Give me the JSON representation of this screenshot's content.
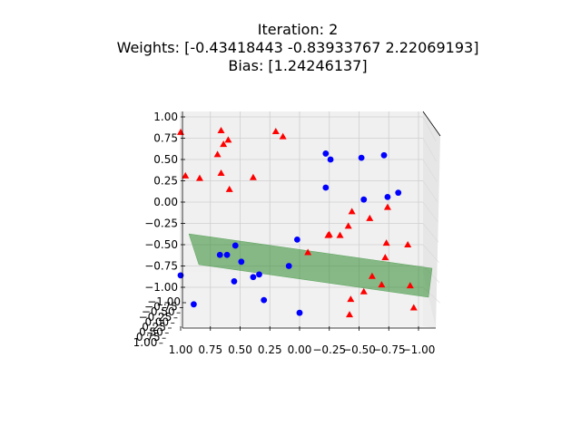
{
  "chart_data": {
    "type": "scatter",
    "projection": "3d",
    "title": [
      "Iteration: 2",
      "Weights: [-0.43418443 -0.83933767  2.22069193]",
      "Bias: [1.24246137]"
    ],
    "xlim": [
      -1.0,
      1.0
    ],
    "ylim": [
      -1.0,
      1.0
    ],
    "zlim": [
      -1.0,
      1.0
    ],
    "ticks": {
      "x": [
        "1.00",
        "0.75",
        "0.50",
        "0.25",
        "0.00",
        "−0.25",
        "−0.50",
        "−0.75",
        "−1.00"
      ],
      "z": [
        "1.00",
        "0.75",
        "0.50",
        "0.25",
        "0.00",
        "−0.25",
        "−0.50",
        "−0.75",
        "−1.00"
      ],
      "y": [
        "−1.00",
        "−0.75",
        "−0.50",
        "−0.25",
        "0.00",
        "0.25",
        "0.50",
        "0.75",
        "1.00"
      ]
    },
    "grid": true,
    "plane": {
      "color": "#2e8b2e",
      "opacity": 0.5
    },
    "series": [
      {
        "marker": "circle",
        "color": "#0000ff",
        "points": [
          {
            "x": -0.22,
            "z": 0.57
          },
          {
            "x": -0.26,
            "z": 0.5
          },
          {
            "x": -0.52,
            "z": 0.52
          },
          {
            "x": -0.71,
            "z": 0.55
          },
          {
            "x": -0.22,
            "z": 0.17
          },
          {
            "x": -0.54,
            "z": 0.03
          },
          {
            "x": -0.74,
            "z": 0.06
          },
          {
            "x": -0.83,
            "z": 0.11
          },
          {
            "x": 0.02,
            "z": -0.44
          },
          {
            "x": 0.54,
            "z": -0.51
          },
          {
            "x": 0.67,
            "z": -0.62
          },
          {
            "x": 0.61,
            "z": -0.62
          },
          {
            "x": 0.49,
            "z": -0.7
          },
          {
            "x": 0.09,
            "z": -0.75
          },
          {
            "x": 0.34,
            "z": -0.85
          },
          {
            "x": 0.39,
            "z": -0.88
          },
          {
            "x": 1.0,
            "z": -0.86
          },
          {
            "x": 0.55,
            "z": -0.93
          },
          {
            "x": 0.3,
            "z": -1.15
          },
          {
            "x": 0.89,
            "z": -1.2
          },
          {
            "x": 0.0,
            "z": -1.3
          }
        ]
      },
      {
        "marker": "triangle",
        "color": "#ff0000",
        "points": [
          {
            "x": 1.0,
            "z": 0.82
          },
          {
            "x": 0.66,
            "z": 0.84
          },
          {
            "x": 0.2,
            "z": 0.83
          },
          {
            "x": 0.6,
            "z": 0.73
          },
          {
            "x": 0.14,
            "z": 0.77
          },
          {
            "x": 0.64,
            "z": 0.68
          },
          {
            "x": 0.69,
            "z": 0.56
          },
          {
            "x": 0.66,
            "z": 0.34
          },
          {
            "x": 0.96,
            "z": 0.31
          },
          {
            "x": 0.84,
            "z": 0.28
          },
          {
            "x": 0.39,
            "z": 0.29
          },
          {
            "x": 0.59,
            "z": 0.15
          },
          {
            "x": -0.44,
            "z": -0.11
          },
          {
            "x": -0.74,
            "z": -0.06
          },
          {
            "x": -0.59,
            "z": -0.19
          },
          {
            "x": -0.41,
            "z": -0.28
          },
          {
            "x": -0.25,
            "z": -0.38
          },
          {
            "x": -0.34,
            "z": -0.39
          },
          {
            "x": -0.24,
            "z": -0.39
          },
          {
            "x": -0.73,
            "z": -0.48
          },
          {
            "x": -0.91,
            "z": -0.5
          },
          {
            "x": -0.07,
            "z": -0.59
          },
          {
            "x": -0.72,
            "z": -0.65
          },
          {
            "x": -0.61,
            "z": -0.87
          },
          {
            "x": -0.69,
            "z": -0.97
          },
          {
            "x": -0.93,
            "z": -0.98
          },
          {
            "x": -0.54,
            "z": -1.05
          },
          {
            "x": -0.43,
            "z": -1.14
          },
          {
            "x": -0.96,
            "z": -1.24
          },
          {
            "x": -0.42,
            "z": -1.32
          }
        ]
      }
    ]
  }
}
